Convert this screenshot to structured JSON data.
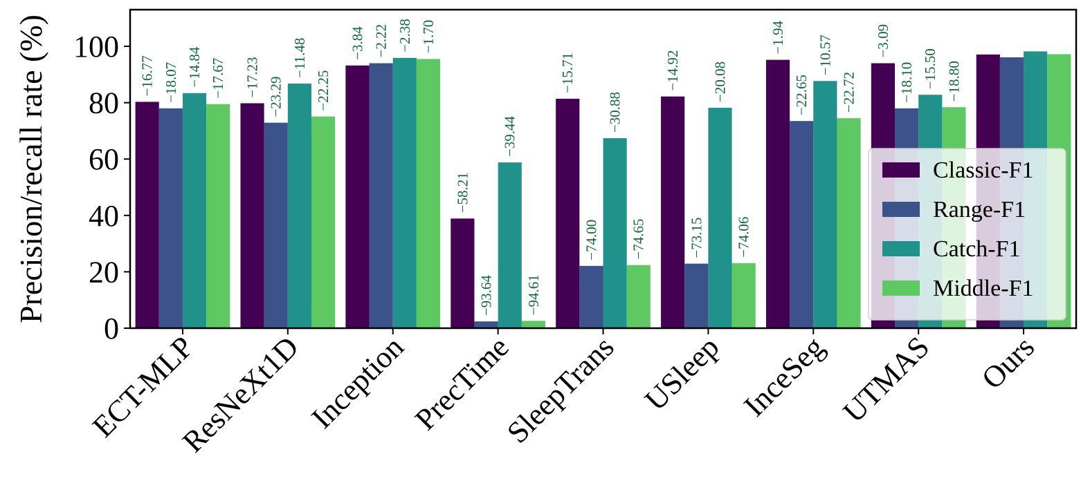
{
  "chart_data": {
    "type": "bar",
    "title": "",
    "xlabel": "",
    "ylabel": "Precision/recall rate (%)",
    "ylim": [
      0,
      113
    ],
    "yticks": [
      0,
      20,
      40,
      60,
      80,
      100
    ],
    "grid": false,
    "legend_position": "right",
    "categories": [
      "ECT-MLP",
      "ResNeXt1D",
      "Inception",
      "PrecTime",
      "SleepTrans",
      "USleep",
      "InceSeg",
      "UTMAS",
      "Ours"
    ],
    "series": [
      {
        "name": "Classic-F1",
        "color": "#440154",
        "values": [
          80.3,
          79.8,
          93.2,
          38.9,
          81.4,
          82.2,
          95.2,
          94.0,
          97.1
        ],
        "labels": [
          "−16.77",
          "−17.23",
          "−3.84",
          "−58.21",
          "−15.71",
          "−14.92",
          "−1.94",
          "−3.09",
          ""
        ]
      },
      {
        "name": "Range-F1",
        "color": "#3b528b",
        "values": [
          78.0,
          72.9,
          94.0,
          2.4,
          22.1,
          22.9,
          73.5,
          78.0,
          96.1
        ],
        "labels": [
          "−18.07",
          "−23.29",
          "−2.22",
          "−93.64",
          "−74.00",
          "−73.15",
          "−22.65",
          "−18.10",
          ""
        ]
      },
      {
        "name": "Catch-F1",
        "color": "#21918c",
        "values": [
          83.4,
          86.8,
          95.9,
          58.8,
          67.4,
          78.2,
          87.7,
          82.8,
          98.2
        ],
        "labels": [
          "−14.84",
          "−11.48",
          "−2.38",
          "−39.44",
          "−30.88",
          "−20.08",
          "−10.57",
          "−15.50",
          ""
        ]
      },
      {
        "name": "Middle-F1",
        "color": "#5ec962",
        "values": [
          79.5,
          75.1,
          95.5,
          2.6,
          22.4,
          23.1,
          74.5,
          78.4,
          97.2
        ],
        "labels": [
          "−17.67",
          "−22.25",
          "−1.70",
          "−94.61",
          "−74.65",
          "−74.06",
          "−22.72",
          "−18.80",
          ""
        ]
      }
    ]
  }
}
